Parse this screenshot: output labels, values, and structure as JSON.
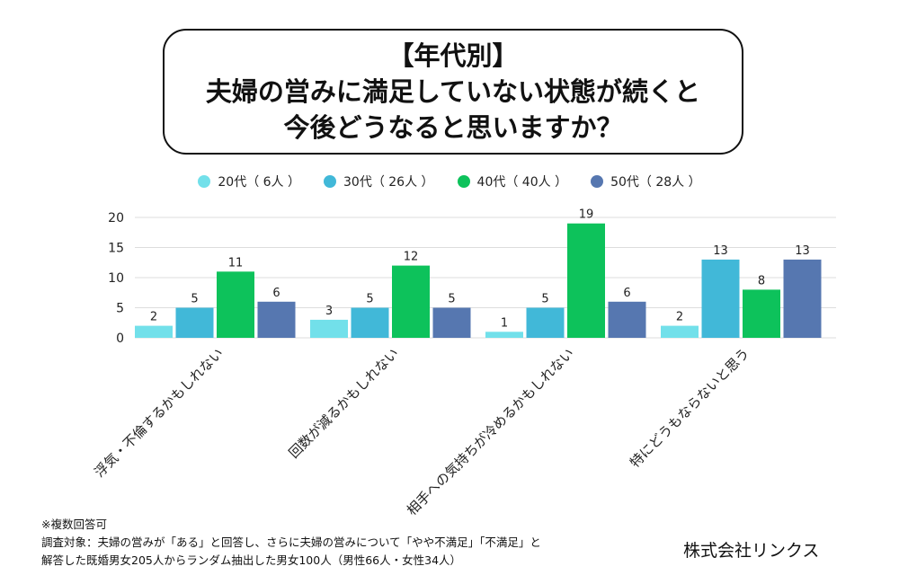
{
  "title_lines": [
    "【年代別】",
    "夫婦の営みに満足していない状態が続くと",
    "今後どうなると思いますか？"
  ],
  "legend": [
    {
      "label": "20代（ 6人 ）",
      "color": "#72e0ea"
    },
    {
      "label": "30代（ 26人 ）",
      "color": "#41b8d8"
    },
    {
      "label": "40代（ 40人 ）",
      "color": "#0dc25b"
    },
    {
      "label": "50代（ 28人 ）",
      "color": "#5677b0"
    }
  ],
  "chart_data": {
    "type": "bar",
    "categories": [
      "浮気・不倫するかもしれない",
      "回数が減るかもしれない",
      "相手への気持ちが冷めるかもしれない",
      "特にどうもならないと思う"
    ],
    "series": [
      {
        "name": "20代（ 6人 ）",
        "color": "#72e0ea",
        "values": [
          2,
          3,
          1,
          2
        ]
      },
      {
        "name": "30代（ 26人 ）",
        "color": "#41b8d8",
        "values": [
          5,
          5,
          5,
          13
        ]
      },
      {
        "name": "40代（ 40人 ）",
        "color": "#0dc25b",
        "values": [
          11,
          12,
          19,
          8
        ]
      },
      {
        "name": "50代（ 28人 ）",
        "color": "#5677b0",
        "values": [
          6,
          5,
          6,
          13
        ]
      }
    ],
    "yticks": [
      0,
      5,
      10,
      15,
      20
    ],
    "ylim": [
      0,
      20
    ],
    "grid": true,
    "legend_position": "top-center"
  },
  "footnotes": [
    "※複数回答可",
    "調査対象：夫婦の営みが「ある」と回答し、さらに夫婦の営みについて「やや不満足」「不満足」と",
    "解答した既婚男女205人からランダム抽出した男女100人（男性66人・女性34人）"
  ],
  "company": "株式会社リンクス"
}
